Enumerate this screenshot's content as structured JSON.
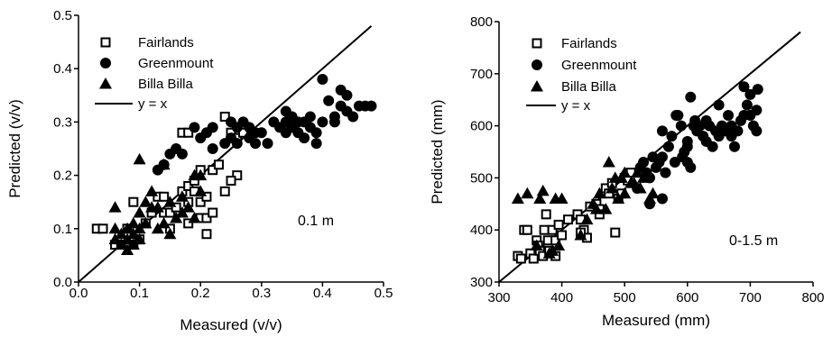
{
  "chart_data": [
    {
      "type": "scatter",
      "title": "",
      "xlabel": "Measured (v/v)",
      "ylabel": "Predicted (v/v)",
      "xlim": [
        0.0,
        0.5
      ],
      "ylim": [
        0.0,
        0.5
      ],
      "xticks": [
        "0.0",
        "0.1",
        "0.2",
        "0.3",
        "0.4",
        "0.5"
      ],
      "yticks": [
        "0.0",
        "0.1",
        "0.2",
        "0.3",
        "0.4",
        "0.5"
      ],
      "annotation": "0.1 m",
      "legend_position": "top-left",
      "reference_line": {
        "label": "y = x",
        "from": [
          0.0,
          0.0
        ],
        "to": [
          0.48,
          0.48
        ]
      },
      "series": [
        {
          "name": "Fairlands",
          "marker": "open-square",
          "points": [
            [
              0.03,
              0.1
            ],
            [
              0.04,
              0.1
            ],
            [
              0.06,
              0.07
            ],
            [
              0.07,
              0.07
            ],
            [
              0.08,
              0.1
            ],
            [
              0.09,
              0.07
            ],
            [
              0.09,
              0.15
            ],
            [
              0.1,
              0.08
            ],
            [
              0.11,
              0.11
            ],
            [
              0.12,
              0.13
            ],
            [
              0.13,
              0.16
            ],
            [
              0.14,
              0.16
            ],
            [
              0.14,
              0.13
            ],
            [
              0.15,
              0.13
            ],
            [
              0.15,
              0.1
            ],
            [
              0.17,
              0.17
            ],
            [
              0.17,
              0.28
            ],
            [
              0.18,
              0.28
            ],
            [
              0.18,
              0.15
            ],
            [
              0.18,
              0.18
            ],
            [
              0.19,
              0.17
            ],
            [
              0.19,
              0.19
            ],
            [
              0.2,
              0.21
            ],
            [
              0.2,
              0.15
            ],
            [
              0.2,
              0.12
            ],
            [
              0.21,
              0.12
            ],
            [
              0.21,
              0.09
            ],
            [
              0.21,
              0.16
            ],
            [
              0.22,
              0.21
            ],
            [
              0.22,
              0.13
            ],
            [
              0.23,
              0.22
            ],
            [
              0.24,
              0.17
            ],
            [
              0.24,
              0.31
            ],
            [
              0.25,
              0.28
            ],
            [
              0.26,
              0.27
            ],
            [
              0.26,
              0.2
            ],
            [
              0.27,
              0.28
            ],
            [
              0.25,
              0.19
            ],
            [
              0.16,
              0.14
            ],
            [
              0.18,
              0.11
            ]
          ]
        },
        {
          "name": "Greenmount",
          "marker": "filled-circle",
          "points": [
            [
              0.13,
              0.21
            ],
            [
              0.14,
              0.22
            ],
            [
              0.15,
              0.24
            ],
            [
              0.16,
              0.25
            ],
            [
              0.17,
              0.24
            ],
            [
              0.19,
              0.29
            ],
            [
              0.2,
              0.27
            ],
            [
              0.21,
              0.28
            ],
            [
              0.22,
              0.29
            ],
            [
              0.22,
              0.25
            ],
            [
              0.24,
              0.26
            ],
            [
              0.25,
              0.27
            ],
            [
              0.25,
              0.3
            ],
            [
              0.26,
              0.29
            ],
            [
              0.26,
              0.26
            ],
            [
              0.27,
              0.3
            ],
            [
              0.28,
              0.27
            ],
            [
              0.28,
              0.29
            ],
            [
              0.29,
              0.26
            ],
            [
              0.3,
              0.28
            ],
            [
              0.31,
              0.26
            ],
            [
              0.32,
              0.3
            ],
            [
              0.33,
              0.29
            ],
            [
              0.34,
              0.28
            ],
            [
              0.34,
              0.3
            ],
            [
              0.35,
              0.31
            ],
            [
              0.35,
              0.29
            ],
            [
              0.36,
              0.3
            ],
            [
              0.36,
              0.28
            ],
            [
              0.37,
              0.3
            ],
            [
              0.37,
              0.27
            ],
            [
              0.38,
              0.29
            ],
            [
              0.38,
              0.31
            ],
            [
              0.39,
              0.26
            ],
            [
              0.39,
              0.28
            ],
            [
              0.4,
              0.38
            ],
            [
              0.4,
              0.3
            ],
            [
              0.41,
              0.34
            ],
            [
              0.42,
              0.31
            ],
            [
              0.42,
              0.3
            ],
            [
              0.43,
              0.33
            ],
            [
              0.43,
              0.36
            ],
            [
              0.44,
              0.35
            ],
            [
              0.44,
              0.32
            ],
            [
              0.45,
              0.31
            ],
            [
              0.46,
              0.33
            ],
            [
              0.47,
              0.33
            ],
            [
              0.48,
              0.33
            ],
            [
              0.34,
              0.32
            ],
            [
              0.29,
              0.28
            ]
          ]
        },
        {
          "name": "Billa Billa",
          "marker": "filled-triangle",
          "points": [
            [
              0.06,
              0.08
            ],
            [
              0.06,
              0.1
            ],
            [
              0.06,
              0.14
            ],
            [
              0.07,
              0.07
            ],
            [
              0.07,
              0.09
            ],
            [
              0.08,
              0.08
            ],
            [
              0.08,
              0.1
            ],
            [
              0.08,
              0.06
            ],
            [
              0.09,
              0.09
            ],
            [
              0.09,
              0.11
            ],
            [
              0.09,
              0.07
            ],
            [
              0.1,
              0.08
            ],
            [
              0.1,
              0.1
            ],
            [
              0.1,
              0.13
            ],
            [
              0.1,
              0.23
            ],
            [
              0.11,
              0.15
            ],
            [
              0.11,
              0.11
            ],
            [
              0.12,
              0.17
            ],
            [
              0.12,
              0.14
            ],
            [
              0.13,
              0.1
            ],
            [
              0.13,
              0.14
            ],
            [
              0.14,
              0.11
            ],
            [
              0.14,
              0.22
            ],
            [
              0.15,
              0.15
            ],
            [
              0.15,
              0.09
            ],
            [
              0.16,
              0.12
            ],
            [
              0.16,
              0.12
            ],
            [
              0.17,
              0.16
            ],
            [
              0.17,
              0.13
            ],
            [
              0.18,
              0.14
            ],
            [
              0.19,
              0.12
            ],
            [
              0.19,
              0.2
            ],
            [
              0.2,
              0.17
            ],
            [
              0.2,
              0.2
            ]
          ]
        }
      ]
    },
    {
      "type": "scatter",
      "title": "",
      "xlabel": "Measured (mm)",
      "ylabel": "Predicted (mm)",
      "xlim": [
        300,
        800
      ],
      "ylim": [
        300,
        800
      ],
      "xticks": [
        "300",
        "400",
        "500",
        "600",
        "700",
        "800"
      ],
      "yticks": [
        "300",
        "400",
        "500",
        "600",
        "700",
        "800"
      ],
      "annotation": "0-1.5 m",
      "legend_position": "top-left",
      "reference_line": {
        "label": "y = x",
        "from": [
          300,
          300
        ],
        "to": [
          780,
          780
        ]
      },
      "series": [
        {
          "name": "Fairlands",
          "marker": "open-square",
          "points": [
            [
              330,
              350
            ],
            [
              335,
              345
            ],
            [
              340,
              400
            ],
            [
              345,
              400
            ],
            [
              350,
              355
            ],
            [
              355,
              345
            ],
            [
              360,
              380
            ],
            [
              362,
              370
            ],
            [
              365,
              360
            ],
            [
              370,
              350
            ],
            [
              372,
              400
            ],
            [
              375,
              430
            ],
            [
              378,
              380
            ],
            [
              380,
              360
            ],
            [
              385,
              400
            ],
            [
              390,
              350
            ],
            [
              390,
              380
            ],
            [
              395,
              410
            ],
            [
              400,
              390
            ],
            [
              410,
              420
            ],
            [
              425,
              430
            ],
            [
              430,
              420
            ],
            [
              435,
              400
            ],
            [
              440,
              385
            ],
            [
              445,
              445
            ],
            [
              455,
              450
            ],
            [
              460,
              440
            ],
            [
              470,
              480
            ],
            [
              475,
              470
            ],
            [
              480,
              490
            ],
            [
              485,
              395
            ],
            [
              490,
              460
            ],
            [
              495,
              470
            ],
            [
              500,
              500
            ],
            [
              505,
              495
            ],
            [
              510,
              510
            ],
            [
              460,
              430
            ],
            [
              430,
              395
            ]
          ]
        },
        {
          "name": "Greenmount",
          "marker": "filled-circle",
          "points": [
            [
              520,
              480
            ],
            [
              525,
              520
            ],
            [
              530,
              530
            ],
            [
              535,
              510
            ],
            [
              540,
              450
            ],
            [
              540,
              500
            ],
            [
              545,
              540
            ],
            [
              550,
              520
            ],
            [
              555,
              530
            ],
            [
              560,
              540
            ],
            [
              560,
              460
            ],
            [
              565,
              510
            ],
            [
              570,
              560
            ],
            [
              575,
              580
            ],
            [
              580,
              530
            ],
            [
              582,
              620
            ],
            [
              585,
              620
            ],
            [
              590,
              600
            ],
            [
              592,
              540
            ],
            [
              595,
              550
            ],
            [
              600,
              530
            ],
            [
              600,
              570
            ],
            [
              605,
              520
            ],
            [
              605,
              655
            ],
            [
              610,
              600
            ],
            [
              612,
              610
            ],
            [
              615,
              590
            ],
            [
              620,
              600
            ],
            [
              625,
              580
            ],
            [
              630,
              570
            ],
            [
              630,
              610
            ],
            [
              635,
              600
            ],
            [
              640,
              560
            ],
            [
              645,
              590
            ],
            [
              650,
              580
            ],
            [
              650,
              640
            ],
            [
              655,
              600
            ],
            [
              660,
              590
            ],
            [
              665,
              620
            ],
            [
              670,
              580
            ],
            [
              670,
              600
            ],
            [
              675,
              560
            ],
            [
              680,
              590
            ],
            [
              685,
              610
            ],
            [
              690,
              620
            ],
            [
              690,
              675
            ],
            [
              695,
              640
            ],
            [
              700,
              660
            ],
            [
              700,
              620
            ],
            [
              705,
              600
            ],
            [
              710,
              630
            ],
            [
              710,
              590
            ],
            [
              712,
              670
            ],
            [
              600,
              560
            ],
            [
              560,
              590
            ]
          ]
        },
        {
          "name": "Billa Billa",
          "marker": "filled-triangle",
          "points": [
            [
              330,
              460
            ],
            [
              345,
              470
            ],
            [
              360,
              370
            ],
            [
              365,
              460
            ],
            [
              370,
              475
            ],
            [
              380,
              355
            ],
            [
              385,
              360
            ],
            [
              390,
              460
            ],
            [
              395,
              370
            ],
            [
              400,
              460
            ],
            [
              430,
              390
            ],
            [
              440,
              420
            ],
            [
              450,
              450
            ],
            [
              455,
              440
            ],
            [
              460,
              470
            ],
            [
              470,
              440
            ],
            [
              475,
              530
            ],
            [
              480,
              480
            ],
            [
              485,
              500
            ],
            [
              490,
              460
            ],
            [
              495,
              500
            ],
            [
              500,
              470
            ],
            [
              500,
              510
            ],
            [
              510,
              490
            ],
            [
              515,
              490
            ],
            [
              520,
              510
            ],
            [
              525,
              480
            ],
            [
              530,
              500
            ],
            [
              540,
              460
            ],
            [
              545,
              470
            ]
          ]
        }
      ]
    }
  ]
}
